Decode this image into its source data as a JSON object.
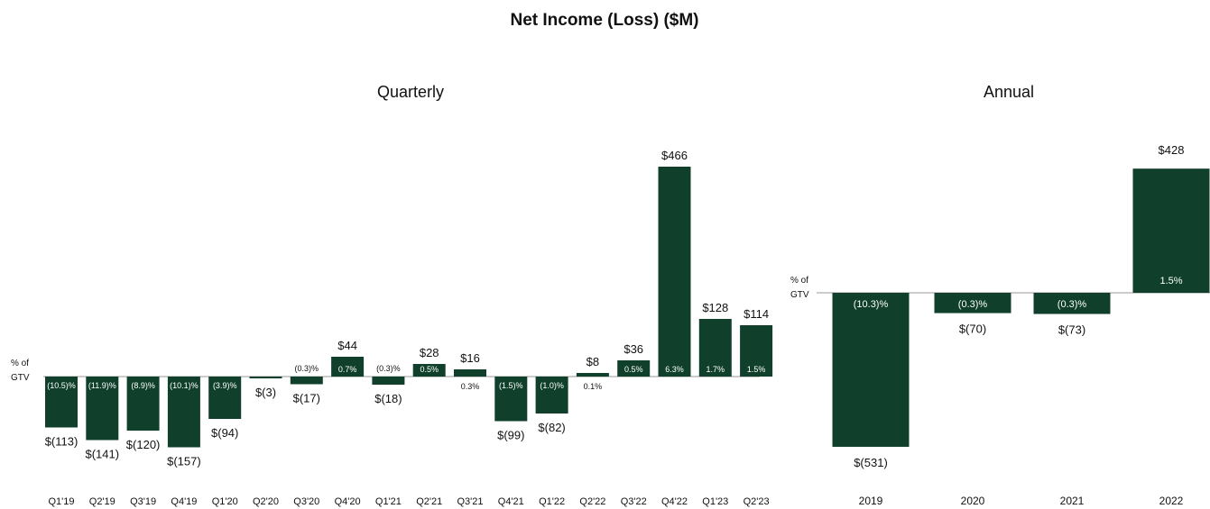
{
  "page": {
    "title": "Net Income (Loss) ($M)"
  },
  "colors": {
    "bar": "#10402c",
    "baseline": "#9a9a9a",
    "text": "#111111"
  },
  "chart_data": [
    {
      "type": "bar",
      "title": "Quarterly",
      "axis_label_line1": "% of",
      "axis_label_line2": "GTV",
      "ylim": [
        -160,
        470
      ],
      "grid": false,
      "categories": [
        "Q1'19",
        "Q2'19",
        "Q3'19",
        "Q4'19",
        "Q1'20",
        "Q2'20",
        "Q3'20",
        "Q4'20",
        "Q1'21",
        "Q2'21",
        "Q3'21",
        "Q4'21",
        "Q1'22",
        "Q2'22",
        "Q3'22",
        "Q4'22",
        "Q1'23",
        "Q2'23"
      ],
      "values": [
        -113,
        -141,
        -120,
        -157,
        -94,
        -3,
        -17,
        44,
        -18,
        28,
        16,
        -99,
        -82,
        8,
        36,
        466,
        128,
        114
      ],
      "value_labels": [
        "$(113)",
        "$(141)",
        "$(120)",
        "$(157)",
        "$(94)",
        "$(3)",
        "$(17)",
        "$44",
        "$(18)",
        "$28",
        "$16",
        "$(99)",
        "$(82)",
        "$8",
        "$36",
        "$466",
        "$128",
        "$114"
      ],
      "pct_labels": [
        "(10.5)%",
        "(11.9)%",
        "(8.9)%",
        "(10.1)%",
        "(3.9)%",
        "",
        "(0.3)%",
        "0.7%",
        "(0.3)%",
        "0.5%",
        "0.3%",
        "(1.5)%",
        "(1.0)%",
        "0.1%",
        "0.5%",
        "6.3%",
        "1.7%",
        "1.5%"
      ]
    },
    {
      "type": "bar",
      "title": "Annual",
      "axis_label_line1": "% of",
      "axis_label_line2": "GTV",
      "ylim": [
        -540,
        440
      ],
      "grid": false,
      "categories": [
        "2019",
        "2020",
        "2021",
        "2022"
      ],
      "values": [
        -531,
        -70,
        -73,
        428
      ],
      "value_labels": [
        "$(531)",
        "$(70)",
        "$(73)",
        "$428"
      ],
      "pct_labels": [
        "(10.3)%",
        "(0.3)%",
        "(0.3)%",
        "1.5%"
      ]
    }
  ]
}
